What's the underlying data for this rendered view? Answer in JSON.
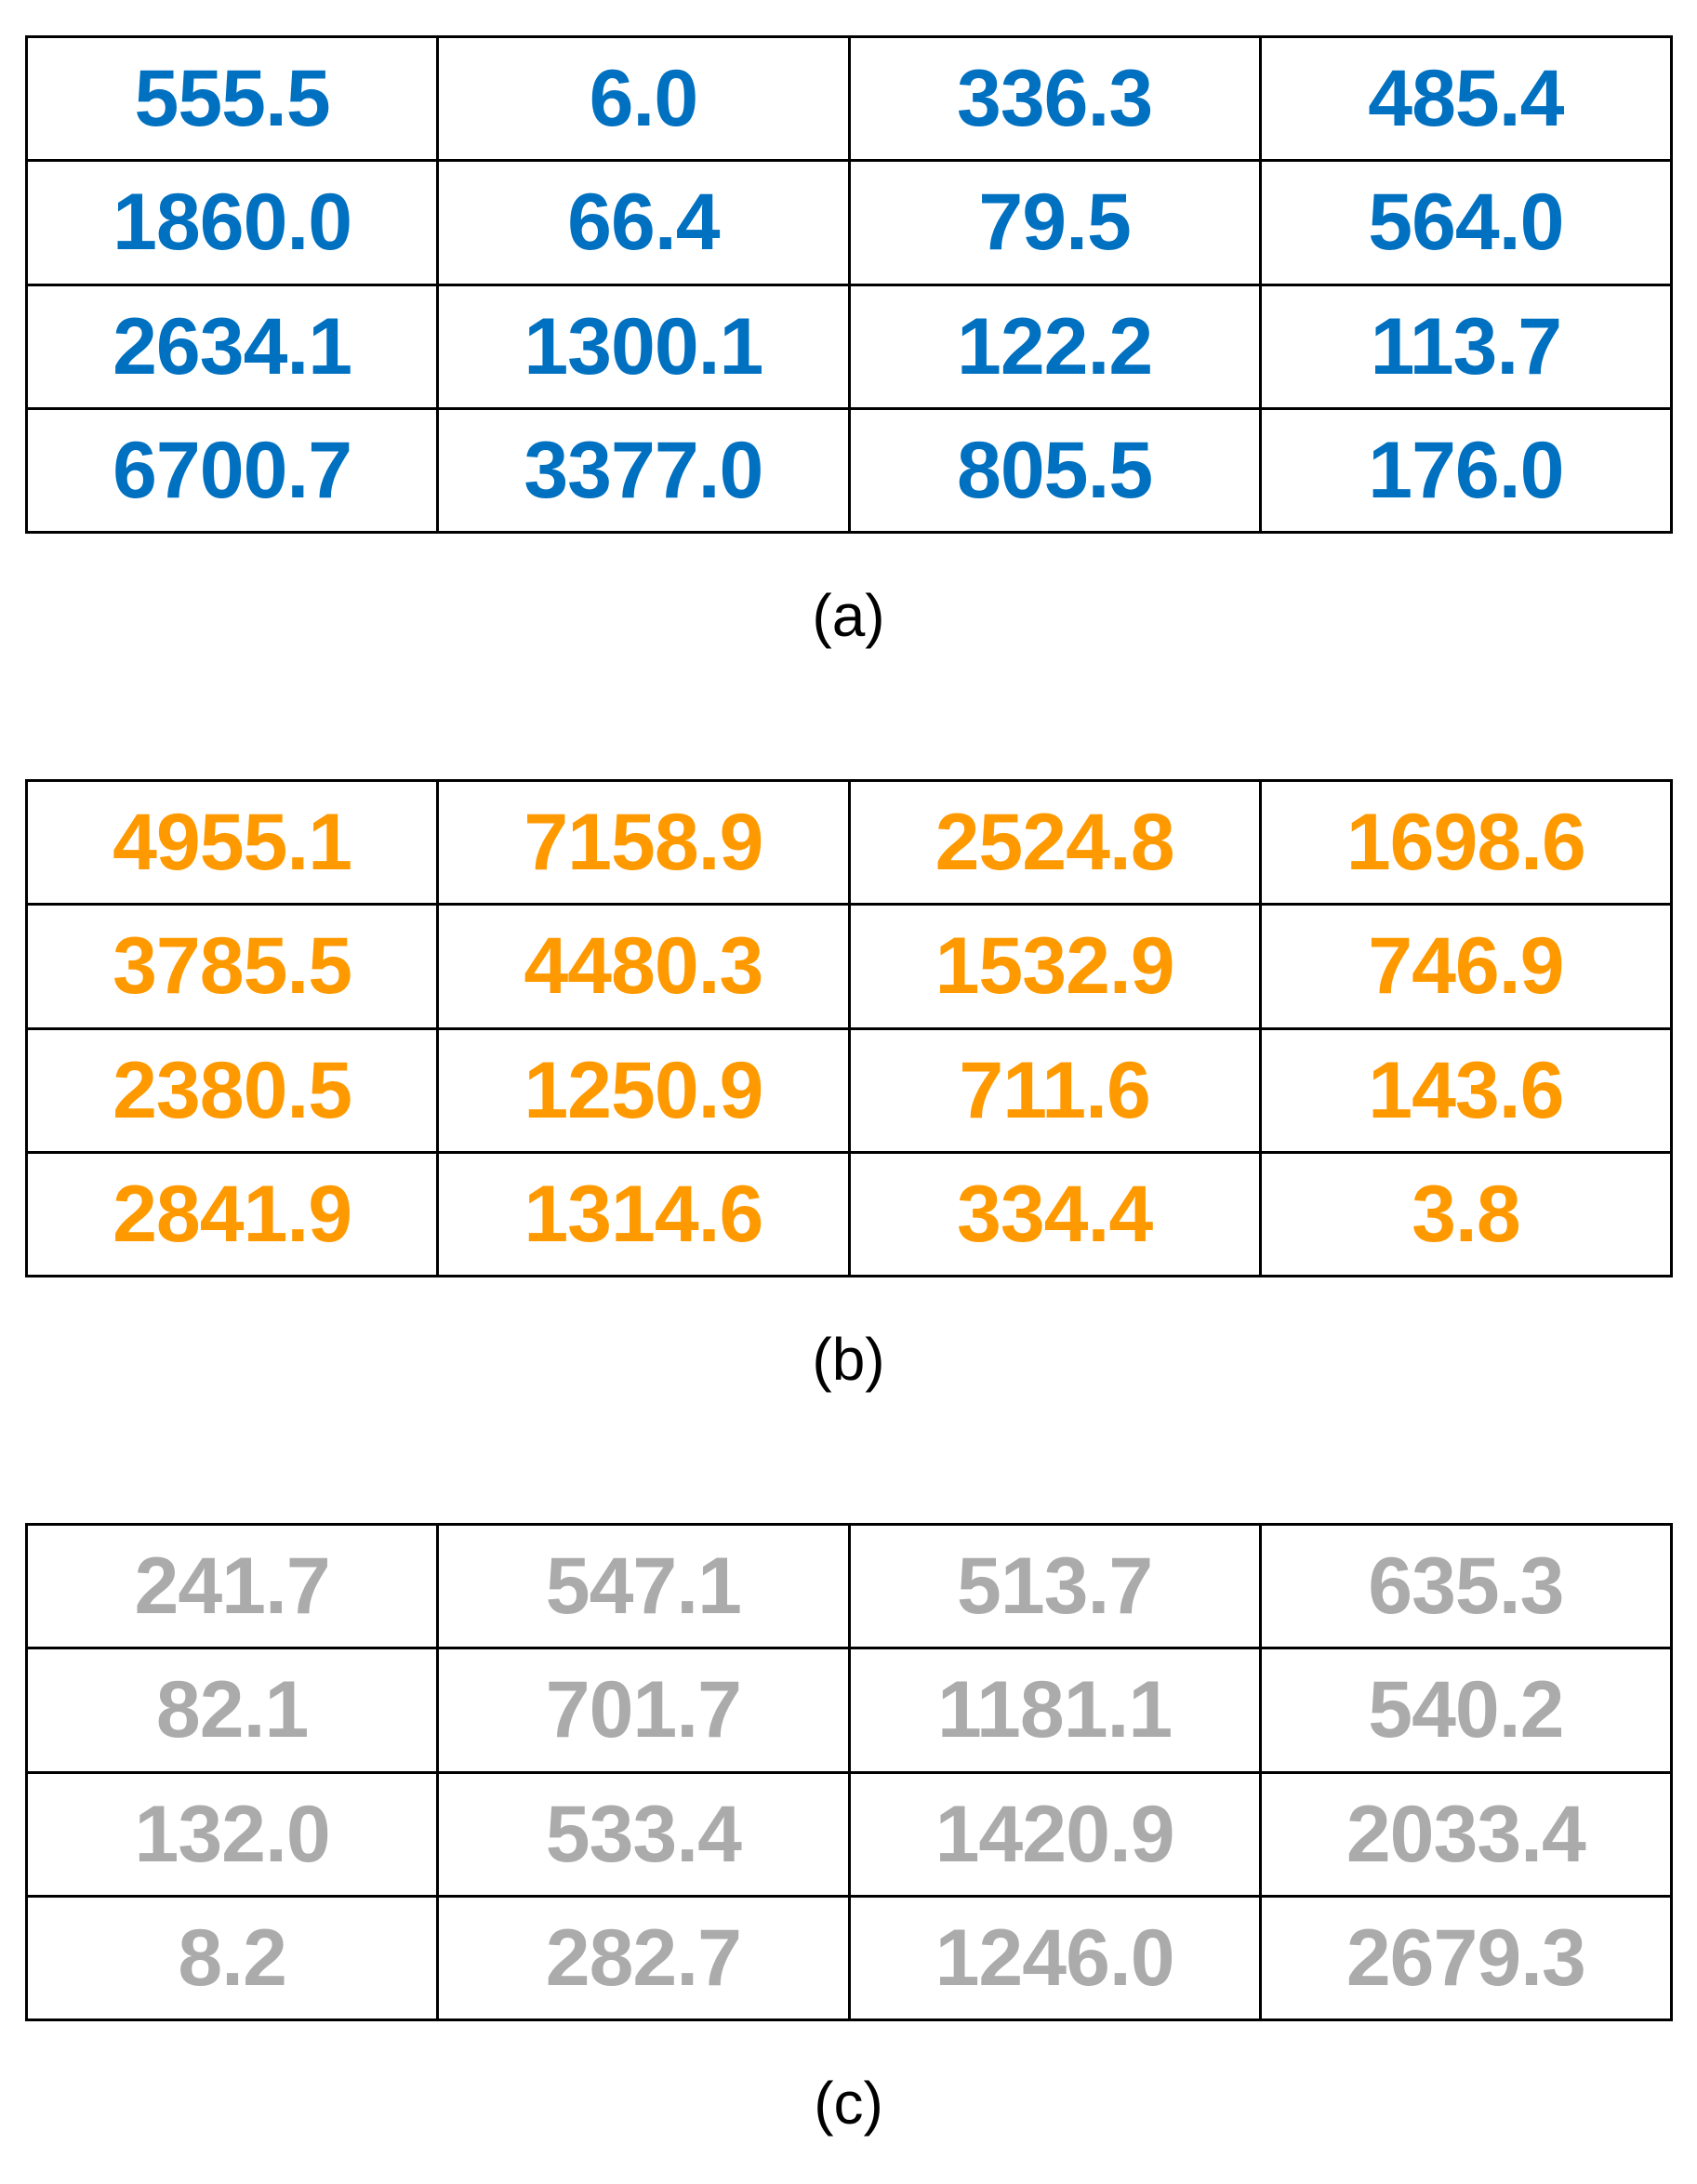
{
  "chart_data": [
    {
      "type": "table",
      "caption": "(a)",
      "color": "#0070C0",
      "rows": [
        [
          "555.5",
          "6.0",
          "336.3",
          "485.4"
        ],
        [
          "1860.0",
          "66.4",
          "79.5",
          "564.0"
        ],
        [
          "2634.1",
          "1300.1",
          "122.2",
          "113.7"
        ],
        [
          "6700.7",
          "3377.0",
          "805.5",
          "176.0"
        ]
      ]
    },
    {
      "type": "table",
      "caption": "(b)",
      "color": "#FF9900",
      "rows": [
        [
          "4955.1",
          "7158.9",
          "2524.8",
          "1698.6"
        ],
        [
          "3785.5",
          "4480.3",
          "1532.9",
          "746.9"
        ],
        [
          "2380.5",
          "1250.9",
          "711.6",
          "143.6"
        ],
        [
          "2841.9",
          "1314.6",
          "334.4",
          "3.8"
        ]
      ]
    },
    {
      "type": "table",
      "caption": "(c)",
      "color": "#ABABAB",
      "rows": [
        [
          "241.7",
          "547.1",
          "513.7",
          "635.3"
        ],
        [
          "82.1",
          "701.7",
          "1181.1",
          "540.2"
        ],
        [
          "132.0",
          "533.4",
          "1420.9",
          "2033.4"
        ],
        [
          "8.2",
          "282.7",
          "1246.0",
          "2679.3"
        ]
      ]
    }
  ]
}
